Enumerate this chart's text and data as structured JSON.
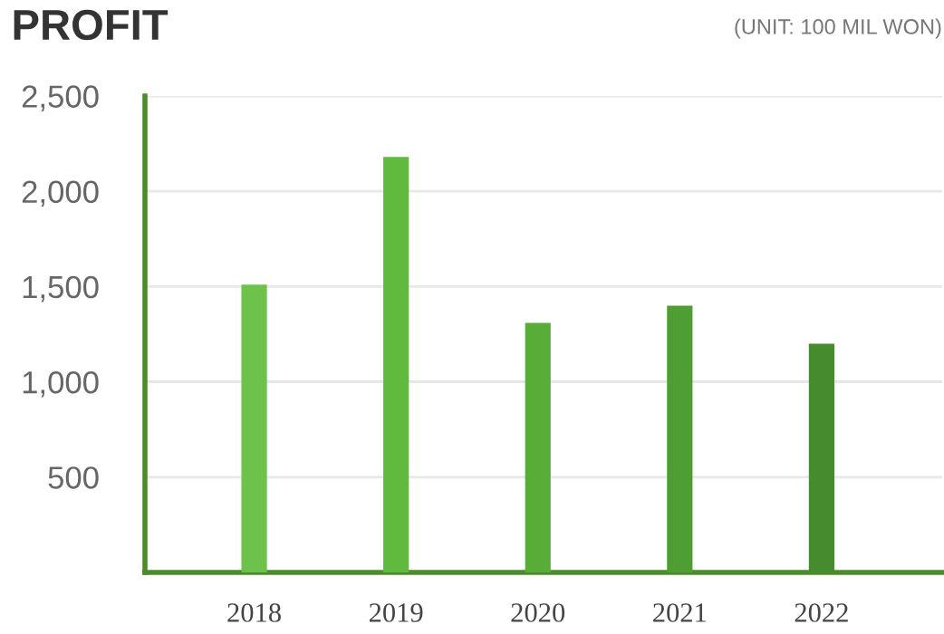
{
  "chart_data": {
    "type": "bar",
    "title": "PROFIT",
    "annotations": [
      "(UNIT: 100 MIL WON)"
    ],
    "categories": [
      "2018",
      "2019",
      "2020",
      "2021",
      "2022"
    ],
    "values": [
      1510,
      2180,
      1310,
      1400,
      1200
    ],
    "colors": [
      "#6cc24a",
      "#5fba3e",
      "#58ad38",
      "#4f9e34",
      "#478b2f"
    ],
    "ylim": [
      0,
      2500
    ],
    "yticks": [
      {
        "value": 0,
        "label": null
      },
      {
        "value": 500,
        "label": "500"
      },
      {
        "value": 1000,
        "label": "1,000"
      },
      {
        "value": 1500,
        "label": "1,500"
      },
      {
        "value": 2000,
        "label": "2,000"
      },
      {
        "value": 2500,
        "label": "2,500"
      }
    ],
    "ref_lines": [
      {
        "axis": "y",
        "value": 1000,
        "label": null,
        "color": "#a6d98f"
      }
    ],
    "grid": "y",
    "legend": false
  }
}
